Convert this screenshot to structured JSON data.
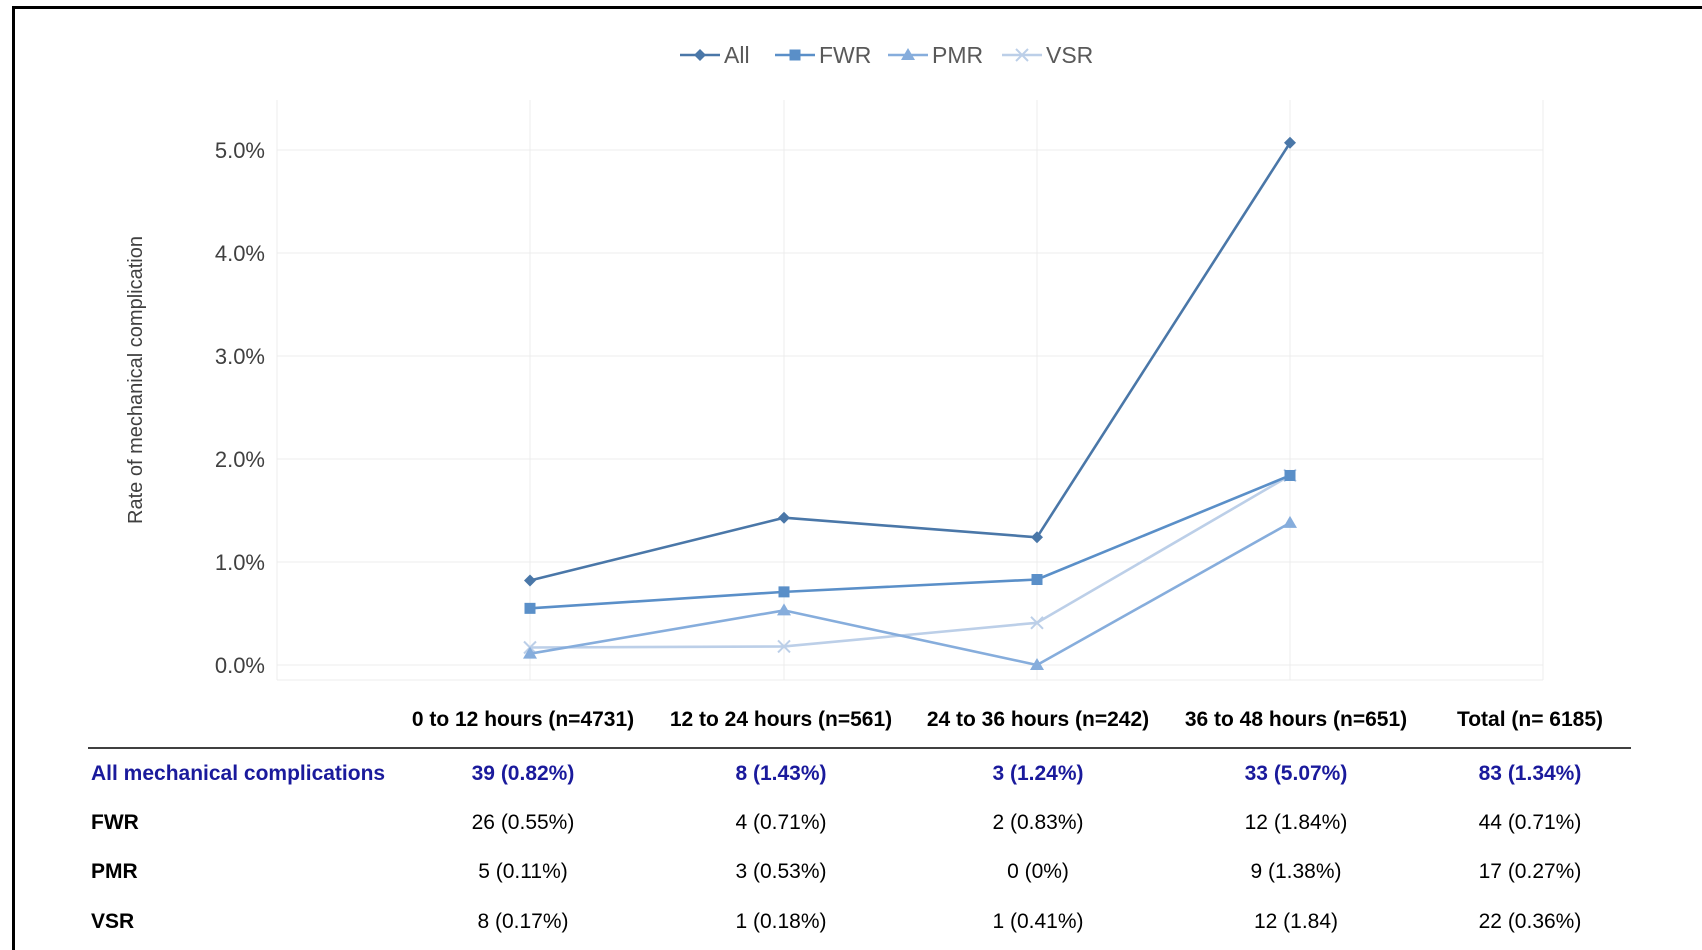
{
  "chart_data": {
    "type": "line",
    "title": "",
    "xlabel": "",
    "ylabel": "Rate of mechanical complication",
    "ylim": [
      0,
      5.5
    ],
    "y_ticks": [
      "0.0%",
      "1.0%",
      "2.0%",
      "3.0%",
      "4.0%",
      "5.0%"
    ],
    "categories": [
      "0 to 12 hours (n=4731)",
      "12 to 24 hours (n=561)",
      "24 to 36 hours (n=242)",
      "36 to 48 hours (n=651)",
      "Total (n= 6185)"
    ],
    "legend_position": "top-center",
    "grid": true,
    "series": [
      {
        "name": "All",
        "marker": "diamond",
        "color": "#4a77a8",
        "values": [
          0.82,
          1.43,
          1.24,
          5.07,
          null
        ]
      },
      {
        "name": "FWR",
        "marker": "square",
        "color": "#5a8fc8",
        "values": [
          0.55,
          0.71,
          0.83,
          1.84,
          null
        ]
      },
      {
        "name": "PMR",
        "marker": "triangle",
        "color": "#86addc",
        "values": [
          0.11,
          0.53,
          0.0,
          1.38,
          null
        ]
      },
      {
        "name": "VSR",
        "marker": "x",
        "color": "#bccfe8",
        "values": [
          0.17,
          0.18,
          0.41,
          1.84,
          null
        ]
      }
    ]
  },
  "table": {
    "headers": [
      "0 to 12 hours (n=4731)",
      "12 to 24 hours (n=561)",
      "24 to 36 hours (n=242)",
      "36 to 48 hours (n=651)",
      "Total (n= 6185)"
    ],
    "rows": [
      {
        "label": "All mechanical complications",
        "cells": [
          "39 (0.82%)",
          "8 (1.43%)",
          "3 (1.24%)",
          "33 (5.07%)",
          "83 (1.34%)"
        ]
      },
      {
        "label": "FWR",
        "cells": [
          "26 (0.55%)",
          "4 (0.71%)",
          "2 (0.83%)",
          "12 (1.84%)",
          "44 (0.71%)"
        ]
      },
      {
        "label": "PMR",
        "cells": [
          "5 (0.11%)",
          "3 (0.53%)",
          "0 (0%)",
          "9 (1.38%)",
          "17 (0.27%)"
        ]
      },
      {
        "label": "VSR",
        "cells": [
          "8 (0.17%)",
          "1 (0.18%)",
          "1 (0.41%)",
          "12 (1.84)",
          "22 (0.36%)"
        ]
      }
    ]
  }
}
